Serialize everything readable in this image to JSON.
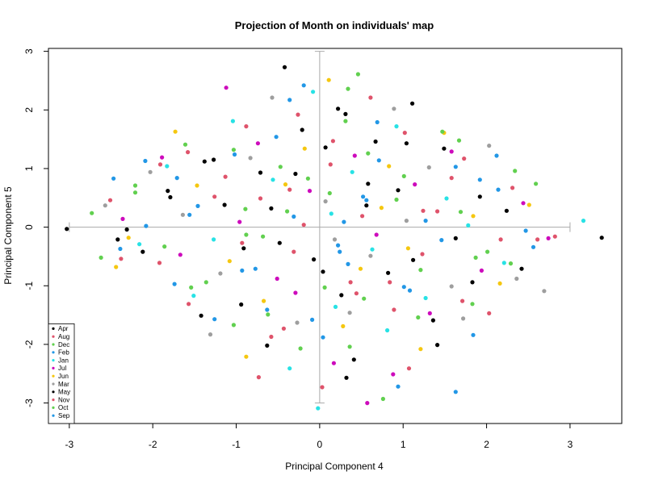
{
  "chart_data": {
    "type": "scatter",
    "title": "Projection of Month on individuals' map",
    "xlabel": "Principal Component 4",
    "ylabel": "Principal Component 5",
    "xlim": [
      -3.25,
      3.62
    ],
    "ylim": [
      -3.35,
      3.05
    ],
    "x_ticks": [
      -3,
      -2,
      -1,
      0,
      1,
      2,
      3
    ],
    "y_ticks": [
      -3,
      -2,
      -1,
      0,
      1,
      2,
      3
    ],
    "grid": false,
    "legend_position": "bottom-left",
    "reference_cross": {
      "x_range": [
        -3,
        3
      ],
      "y_range": [
        -3,
        3
      ],
      "color": "#aaaaaa"
    },
    "series": [
      {
        "name": "Apr",
        "color": "#000000",
        "points": [
          [
            -0.42,
            2.73
          ],
          [
            0.56,
            0.37
          ],
          [
            -0.29,
            0.91
          ],
          [
            1.36,
            -1.59
          ],
          [
            -0.91,
            -0.36
          ],
          [
            0.31,
            1.93
          ],
          [
            -1.79,
            0.51
          ],
          [
            2.24,
            0.28
          ],
          [
            -3.03,
            -0.03
          ],
          [
            3.38,
            -0.18
          ],
          [
            1.11,
            2.11
          ],
          [
            -0.63,
            -2.02
          ],
          [
            0.41,
            -2.26
          ],
          [
            -1.27,
            1.15
          ],
          [
            0.82,
            -0.78
          ],
          [
            -0.07,
            -0.55
          ],
          [
            1.83,
            -0.94
          ],
          [
            -2.42,
            -0.21
          ],
          [
            0.07,
            1.36
          ],
          [
            -1.42,
            -1.51
          ],
          [
            1.49,
            1.34
          ],
          [
            0.94,
            0.63
          ],
          [
            -0.58,
            0.32
          ],
          [
            0.26,
            -1.16
          ]
        ]
      },
      {
        "name": "Aug",
        "color": "#df536b",
        "points": [
          [
            0.16,
            1.47
          ],
          [
            -1.13,
            0.86
          ],
          [
            1.23,
            -0.46
          ],
          [
            -0.43,
            -1.73
          ],
          [
            2.31,
            0.67
          ],
          [
            -1.92,
            -0.61
          ],
          [
            0.61,
            2.21
          ],
          [
            0.89,
            -1.41
          ],
          [
            -0.19,
            0.04
          ],
          [
            1.73,
            1.17
          ],
          [
            -2.51,
            0.46
          ],
          [
            0.37,
            -0.94
          ],
          [
            -0.88,
            1.72
          ],
          [
            1.41,
            0.27
          ],
          [
            2.61,
            -0.21
          ],
          [
            -1.57,
            -1.31
          ],
          [
            0.03,
            -2.73
          ],
          [
            -0.71,
            0.49
          ],
          [
            1.02,
            1.61
          ],
          [
            -0.31,
            -0.42
          ]
        ]
      },
      {
        "name": "Dec",
        "color": "#61d04f",
        "points": [
          [
            0.46,
            2.61
          ],
          [
            -1.61,
            1.41
          ],
          [
            1.01,
            0.87
          ],
          [
            -0.23,
            -2.07
          ],
          [
            2.01,
            -0.42
          ],
          [
            -0.89,
            0.31
          ],
          [
            0.53,
            -1.22
          ],
          [
            -2.21,
            0.71
          ],
          [
            1.67,
            1.48
          ],
          [
            -0.47,
            1.03
          ],
          [
            0.76,
            -2.93
          ],
          [
            -1.36,
            -0.94
          ],
          [
            2.34,
            0.96
          ],
          [
            0.12,
            0.58
          ],
          [
            -1.03,
            -1.67
          ],
          [
            1.21,
            -0.73
          ],
          [
            -2.62,
            -0.52
          ],
          [
            0.31,
            1.81
          ],
          [
            1.83,
            -1.31
          ],
          [
            -0.68,
            -0.16
          ]
        ]
      },
      {
        "name": "Feb",
        "color": "#2297e6",
        "points": [
          [
            -0.19,
            2.42
          ],
          [
            1.46,
            -0.22
          ],
          [
            -1.02,
            1.24
          ],
          [
            0.34,
            -0.63
          ],
          [
            -2.08,
            0.02
          ],
          [
            1.92,
            0.81
          ],
          [
            -0.63,
            -1.41
          ],
          [
            0.71,
            1.14
          ],
          [
            2.56,
            -0.34
          ],
          [
            -1.46,
            0.36
          ],
          [
            0.04,
            -1.88
          ],
          [
            -2.47,
            0.83
          ],
          [
            1.08,
            -1.08
          ],
          [
            -0.31,
            0.18
          ],
          [
            1.63,
            -2.81
          ],
          [
            -0.93,
            -0.74
          ],
          [
            0.56,
            0.46
          ],
          [
            2.12,
            1.22
          ],
          [
            -1.74,
            -0.97
          ],
          [
            0.22,
            -0.31
          ]
        ]
      },
      {
        "name": "Jan",
        "color": "#28e2e5",
        "points": [
          [
            -0.08,
            2.31
          ],
          [
            0.92,
            1.72
          ],
          [
            -1.27,
            -0.21
          ],
          [
            1.52,
            0.49
          ],
          [
            -0.56,
            0.81
          ],
          [
            0.19,
            -1.36
          ],
          [
            2.21,
            -0.61
          ],
          [
            -1.83,
            1.04
          ],
          [
            0.63,
            -0.38
          ],
          [
            3.16,
            0.11
          ],
          [
            -0.36,
            -2.41
          ],
          [
            1.27,
            -1.21
          ],
          [
            -2.16,
            -0.29
          ],
          [
            0.39,
            0.94
          ],
          [
            -1.04,
            1.81
          ],
          [
            1.78,
            0.03
          ],
          [
            -0.02,
            -3.09
          ],
          [
            0.81,
            -1.76
          ],
          [
            -1.51,
            -1.17
          ],
          [
            0.14,
            0.23
          ]
        ]
      },
      {
        "name": "Jul",
        "color": "#cd0bbc",
        "points": [
          [
            -1.12,
            2.38
          ],
          [
            0.68,
            -0.13
          ],
          [
            -0.74,
            1.43
          ],
          [
            1.94,
            -0.74
          ],
          [
            -1.67,
            -0.47
          ],
          [
            0.42,
            1.22
          ],
          [
            2.44,
            0.41
          ],
          [
            -0.29,
            -1.12
          ],
          [
            1.14,
            0.73
          ],
          [
            -2.36,
            0.14
          ],
          [
            0.17,
            -2.32
          ],
          [
            1.58,
            1.29
          ],
          [
            -0.96,
            0.09
          ],
          [
            2.74,
            -0.19
          ],
          [
            -0.51,
            -0.88
          ],
          [
            0.88,
            -2.51
          ],
          [
            -1.89,
            1.19
          ],
          [
            1.32,
            -1.47
          ],
          [
            -0.12,
            0.62
          ],
          [
            0.57,
            -3.0
          ]
        ]
      },
      {
        "name": "Jun",
        "color": "#f5c710",
        "points": [
          [
            0.11,
            2.51
          ],
          [
            -1.47,
            0.71
          ],
          [
            1.06,
            -0.36
          ],
          [
            -0.18,
            1.34
          ],
          [
            2.16,
            -0.96
          ],
          [
            -2.29,
            -0.18
          ],
          [
            0.74,
            0.33
          ],
          [
            -0.67,
            -1.26
          ],
          [
            1.49,
            1.61
          ],
          [
            -1.08,
            -0.58
          ],
          [
            0.28,
            -1.69
          ],
          [
            2.51,
            0.38
          ],
          [
            -0.41,
            0.73
          ],
          [
            1.21,
            -2.08
          ],
          [
            -1.73,
            1.63
          ],
          [
            0.83,
            1.04
          ],
          [
            -2.44,
            -0.68
          ],
          [
            0.49,
            -0.71
          ],
          [
            1.84,
            0.19
          ],
          [
            -0.88,
            -2.21
          ]
        ]
      },
      {
        "name": "Mar",
        "color": "#9e9e9e",
        "points": [
          [
            -0.57,
            2.21
          ],
          [
            1.31,
            1.02
          ],
          [
            -1.19,
            -0.79
          ],
          [
            0.07,
            0.44
          ],
          [
            1.72,
            -1.56
          ],
          [
            -2.03,
            0.94
          ],
          [
            0.61,
            -0.49
          ],
          [
            2.36,
            -0.88
          ],
          [
            -0.83,
            1.18
          ],
          [
            0.36,
            -1.46
          ],
          [
            -1.64,
            0.21
          ],
          [
            1.04,
            0.11
          ],
          [
            -2.57,
            0.37
          ],
          [
            0.89,
            2.02
          ],
          [
            -0.27,
            -1.63
          ],
          [
            2.03,
            1.39
          ],
          [
            -1.31,
            -1.83
          ],
          [
            0.18,
            -0.21
          ],
          [
            1.58,
            -1.01
          ],
          [
            2.69,
            -1.09
          ]
        ]
      },
      {
        "name": "May",
        "color": "#000000",
        "points": [
          [
            0.22,
            2.02
          ],
          [
            -1.38,
            1.12
          ],
          [
            1.12,
            -0.56
          ],
          [
            -0.48,
            -0.27
          ],
          [
            1.92,
            0.52
          ],
          [
            -2.12,
            -0.42
          ],
          [
            0.67,
            1.46
          ],
          [
            -0.94,
            -1.32
          ],
          [
            1.63,
            -0.19
          ],
          [
            -1.82,
            0.62
          ],
          [
            0.32,
            -2.57
          ],
          [
            2.42,
            -0.71
          ],
          [
            -0.71,
            0.93
          ],
          [
            1.04,
            1.43
          ],
          [
            -2.31,
            -0.04
          ],
          [
            0.04,
            -0.76
          ],
          [
            1.41,
            -2.01
          ],
          [
            -1.14,
            0.38
          ],
          [
            0.58,
            0.74
          ],
          [
            -0.21,
            1.66
          ]
        ]
      },
      {
        "name": "Nov",
        "color": "#df536b",
        "points": [
          [
            -0.26,
            1.92
          ],
          [
            1.58,
            0.84
          ],
          [
            -0.93,
            -0.27
          ],
          [
            0.44,
            -1.13
          ],
          [
            -1.91,
            1.07
          ],
          [
            2.17,
            -0.21
          ],
          [
            -0.58,
            -1.87
          ],
          [
            1.24,
            0.28
          ],
          [
            -2.38,
            -0.54
          ],
          [
            0.84,
            -0.94
          ],
          [
            -1.26,
            0.52
          ],
          [
            2.82,
            -0.16
          ],
          [
            0.13,
            1.07
          ],
          [
            -0.73,
            -2.56
          ],
          [
            1.71,
            -1.26
          ],
          [
            -1.58,
            1.28
          ],
          [
            0.51,
            0.19
          ],
          [
            2.03,
            -1.47
          ],
          [
            -0.36,
            0.64
          ],
          [
            1.07,
            -2.41
          ]
        ]
      },
      {
        "name": "Oct",
        "color": "#61d04f",
        "points": [
          [
            0.34,
            2.36
          ],
          [
            -0.88,
            -0.13
          ],
          [
            1.69,
            0.26
          ],
          [
            -1.54,
            -1.03
          ],
          [
            0.58,
            1.26
          ],
          [
            2.29,
            -0.62
          ],
          [
            -0.39,
            0.27
          ],
          [
            1.18,
            -1.54
          ],
          [
            -2.21,
            0.59
          ],
          [
            0.06,
            -1.03
          ],
          [
            1.47,
            1.63
          ],
          [
            -1.03,
            1.32
          ],
          [
            2.59,
            0.74
          ],
          [
            -0.62,
            -1.49
          ],
          [
            0.92,
            0.47
          ],
          [
            -1.86,
            -0.33
          ],
          [
            0.36,
            -2.04
          ],
          [
            1.87,
            -0.52
          ],
          [
            -0.14,
            0.83
          ],
          [
            -2.73,
            0.24
          ]
        ]
      },
      {
        "name": "Sep",
        "color": "#2297e6",
        "points": [
          [
            -0.36,
            2.17
          ],
          [
            1.01,
            -1.02
          ],
          [
            -1.56,
            0.21
          ],
          [
            0.52,
            0.52
          ],
          [
            1.84,
            -1.84
          ],
          [
            -2.09,
            1.13
          ],
          [
            0.24,
            -0.42
          ],
          [
            1.63,
            1.03
          ],
          [
            -0.77,
            -0.71
          ],
          [
            2.47,
            -0.06
          ],
          [
            -1.26,
            -1.57
          ],
          [
            0.69,
            1.79
          ],
          [
            -0.09,
            -1.58
          ],
          [
            1.27,
            0.11
          ],
          [
            -2.39,
            -0.37
          ],
          [
            2.14,
            0.64
          ],
          [
            -0.52,
            1.54
          ],
          [
            0.94,
            -2.72
          ],
          [
            -1.71,
            0.84
          ],
          [
            0.29,
            0.09
          ]
        ]
      }
    ]
  }
}
